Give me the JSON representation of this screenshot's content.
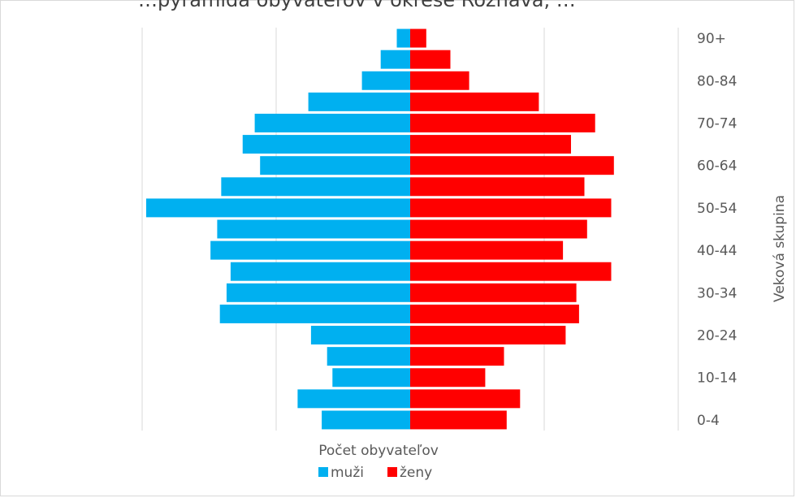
{
  "chart_data": {
    "type": "bar",
    "orientation": "horizontal",
    "title": "…pyramída obyvateľov v okrese Rožňava, …",
    "xlabel": "Počet obyvateľov",
    "ylabel": "Veková skupina",
    "grid": true,
    "legend_position": "bottom",
    "categories": [
      "0-4",
      "5-9",
      "10-14",
      "15-19",
      "20-24",
      "25-29",
      "30-34",
      "35-39",
      "40-44",
      "45-49",
      "50-54",
      "55-59",
      "60-64",
      "65-69",
      "70-74",
      "75-79",
      "80-84",
      "85-89",
      "90+"
    ],
    "tick_labels": [
      "0-4",
      "10-14",
      "20-24",
      "30-34",
      "40-44",
      "50-54",
      "60-64",
      "70-74",
      "80-84",
      "90+"
    ],
    "xlim": [
      -2000,
      2000
    ],
    "series": [
      {
        "name": "muži",
        "color": "#00b0f0",
        "values": [
          660,
          840,
          580,
          620,
          740,
          1420,
          1370,
          1340,
          1490,
          1440,
          1970,
          1410,
          1120,
          1250,
          1160,
          760,
          360,
          220,
          100
        ]
      },
      {
        "name": "ženy",
        "color": "#ff0000",
        "values": [
          720,
          820,
          560,
          700,
          1160,
          1260,
          1240,
          1500,
          1140,
          1320,
          1500,
          1300,
          1520,
          1200,
          1380,
          960,
          440,
          300,
          120
        ]
      }
    ]
  }
}
